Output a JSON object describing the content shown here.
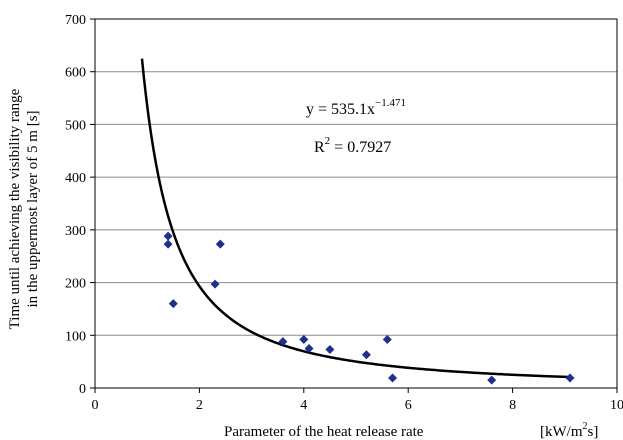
{
  "chart_data": {
    "type": "scatter",
    "xlabel": "Parameter of the heat release rate",
    "xunit_base": "[kW/m",
    "xunit_sup": "2",
    "xunit_end": "s]",
    "ylabel_line1": "Time until achieving the visibility range",
    "ylabel_line2": "in the uppermost layer of 5 m [s]",
    "xlim": [
      0,
      10
    ],
    "ylim": [
      0,
      700
    ],
    "xticks": [
      0,
      2,
      4,
      6,
      8,
      10
    ],
    "yticks": [
      0,
      100,
      200,
      300,
      400,
      500,
      600,
      700
    ],
    "grid": "horizontal",
    "marker_color": "#1F2F8C",
    "curve_color": "#000000",
    "points": [
      {
        "x": 1.4,
        "y": 288
      },
      {
        "x": 1.4,
        "y": 273
      },
      {
        "x": 1.5,
        "y": 160
      },
      {
        "x": 2.3,
        "y": 197
      },
      {
        "x": 2.4,
        "y": 273
      },
      {
        "x": 3.6,
        "y": 88
      },
      {
        "x": 4.0,
        "y": 92
      },
      {
        "x": 4.1,
        "y": 75
      },
      {
        "x": 4.5,
        "y": 73
      },
      {
        "x": 5.2,
        "y": 63
      },
      {
        "x": 5.6,
        "y": 92
      },
      {
        "x": 5.7,
        "y": 19
      },
      {
        "x": 7.6,
        "y": 15
      },
      {
        "x": 9.1,
        "y": 19
      }
    ],
    "trendline": {
      "a": 535.1,
      "b": -1.471,
      "x_range": [
        0.9,
        9.1
      ],
      "equation_base": "y = 535.1x",
      "equation_exp": "−1.471",
      "r2_base": "R",
      "r2_sup": "2",
      "r2_value": " = 0.7927"
    }
  }
}
